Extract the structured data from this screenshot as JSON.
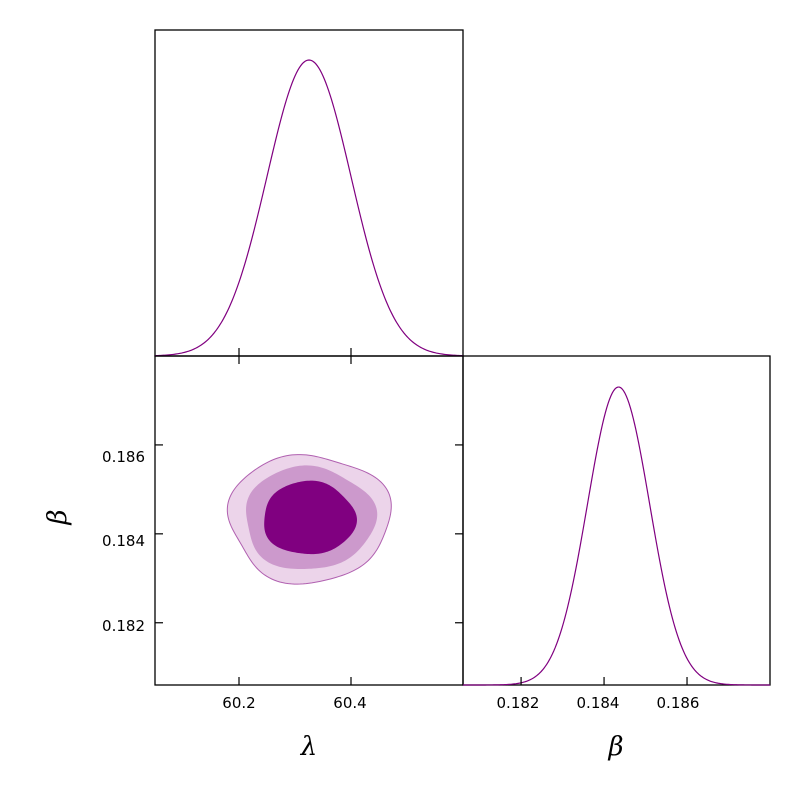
{
  "chart_data": {
    "type": "corner",
    "color": "#800080",
    "contour_fills": [
      "#ecd4ea",
      "#cc99cc",
      "#800080"
    ],
    "contour_edge": "#b060b0",
    "parameters": [
      {
        "symbol": "λ",
        "range": [
          60.05,
          60.6
        ],
        "ticks": [
          {
            "value": 60.2,
            "label": "60.2"
          },
          {
            "value": 60.4,
            "label": "60.4"
          }
        ],
        "mean": 60.325,
        "sigma": 0.075
      },
      {
        "symbol": "β",
        "range": [
          0.1806,
          0.188
        ],
        "ticks": [
          {
            "value": 0.182,
            "label": "0.182"
          },
          {
            "value": 0.184,
            "label": "0.184"
          },
          {
            "value": 0.186,
            "label": "0.186"
          }
        ],
        "mean": 0.18435,
        "sigma": 0.00075
      }
    ],
    "contour_levels_sigma": [
      1,
      2,
      3
    ],
    "panels": [
      {
        "id": "marginal-lambda",
        "type": "line",
        "x_param": 0
      },
      {
        "id": "joint-lambda-beta",
        "type": "contour",
        "x_param": 0,
        "y_param": 1
      },
      {
        "id": "marginal-beta",
        "type": "line",
        "x_param": 1
      }
    ]
  }
}
